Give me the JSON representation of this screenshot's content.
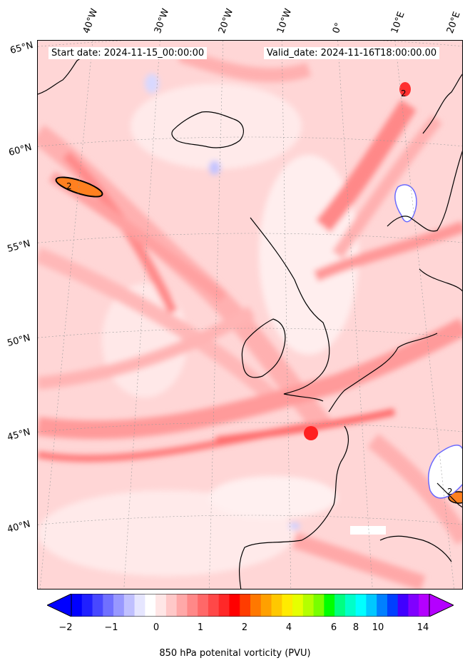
{
  "map": {
    "start_date": "Start date: 2024-11-15_00:00:00",
    "valid_date": "Valid_date: 2024-11-16T18:00:00.00",
    "lon_labels": [
      "40°W",
      "30°W",
      "20°W",
      "10°W",
      "0°",
      "10°E",
      "20°E"
    ],
    "lat_labels": [
      "65°N",
      "60°N",
      "55°N",
      "50°N",
      "45°N",
      "40°N"
    ],
    "contour_labels": [
      "2",
      "2",
      "2"
    ],
    "variable": "850 hPa potential vorticity",
    "units": "PVU"
  },
  "colorbar": {
    "title": "850 hPa potenital vorticity (PVU)",
    "ticks": [
      "−2",
      "−1",
      "0",
      "1",
      "2",
      "4",
      "6",
      "8",
      "10",
      "14"
    ],
    "colors": [
      "#0000ff",
      "#2020ff",
      "#4848ff",
      "#7070ff",
      "#9898ff",
      "#c0c0ff",
      "#e6e6ff",
      "#ffffff",
      "#ffe6e6",
      "#ffc8c8",
      "#ffa8a8",
      "#ff8888",
      "#ff6868",
      "#ff4848",
      "#ff2828",
      "#ff0000",
      "#ff3c00",
      "#ff7800",
      "#ffa000",
      "#ffc800",
      "#ffeb00",
      "#e6ff00",
      "#b4ff00",
      "#78ff00",
      "#00ff00",
      "#00ff80",
      "#00ffc8",
      "#00ffff",
      "#00c8ff",
      "#0080ff",
      "#0040ff",
      "#4000ff",
      "#8000ff",
      "#b400ff"
    ]
  }
}
